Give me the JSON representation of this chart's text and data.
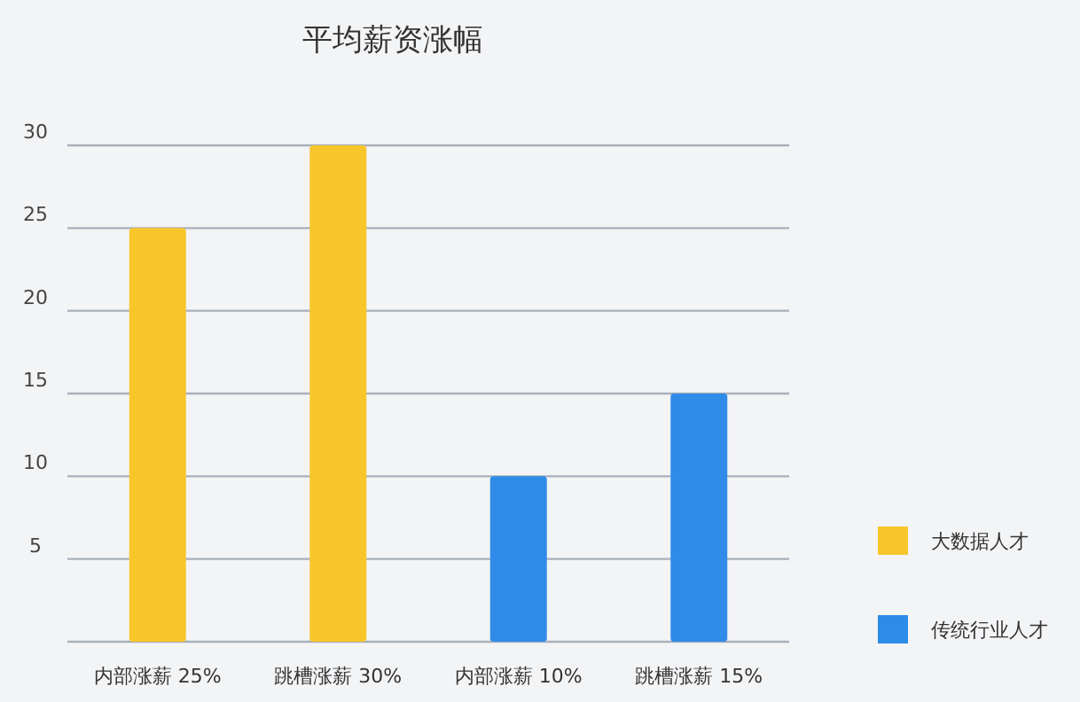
{
  "chart_data": {
    "type": "bar",
    "title": "平均薪资涨幅",
    "categories": [
      "内部涨薪 25%",
      "跳槽涨薪 30%",
      "内部涨薪 10%",
      "跳槽涨薪 15%"
    ],
    "series": [
      {
        "name": "大数据人才",
        "color": "#f8c62b",
        "values": [
          25,
          30,
          null,
          null
        ]
      },
      {
        "name": "传统行业人才",
        "color": "#2f8be8",
        "values": [
          null,
          null,
          10,
          15
        ]
      }
    ],
    "ylim": [
      0,
      30
    ],
    "yticks": [
      {
        "value": 0,
        "label": null
      },
      5,
      10,
      15,
      20,
      25,
      30
    ],
    "grid": "y",
    "legend": "right"
  }
}
